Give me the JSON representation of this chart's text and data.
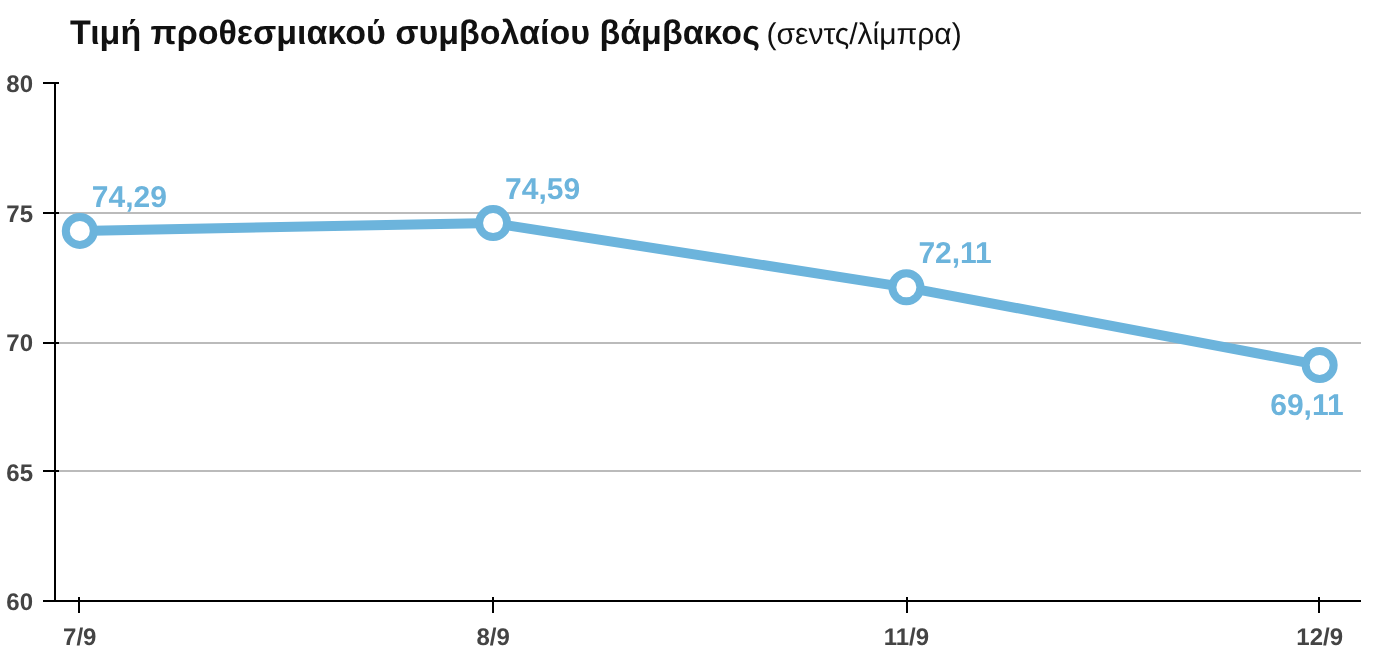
{
  "chart_data": {
    "type": "line",
    "title": "Τιμή προθεσμιακού συμβολαίου βάμβακος",
    "subtitle": "(σεντς/λίμπρα)",
    "categories": [
      "7/9",
      "8/9",
      "11/9",
      "12/9"
    ],
    "series": [
      {
        "color": "#6cb4dc",
        "values": [
          74.29,
          74.59,
          72.11,
          69.11
        ],
        "value_labels": [
          "74,29",
          "74,59",
          "72,11",
          "69,11"
        ]
      }
    ],
    "ylim": [
      60,
      80
    ],
    "yticks": [
      60,
      65,
      70,
      75,
      80
    ],
    "grid": "y",
    "marker": "circle",
    "line_style": "solid"
  }
}
